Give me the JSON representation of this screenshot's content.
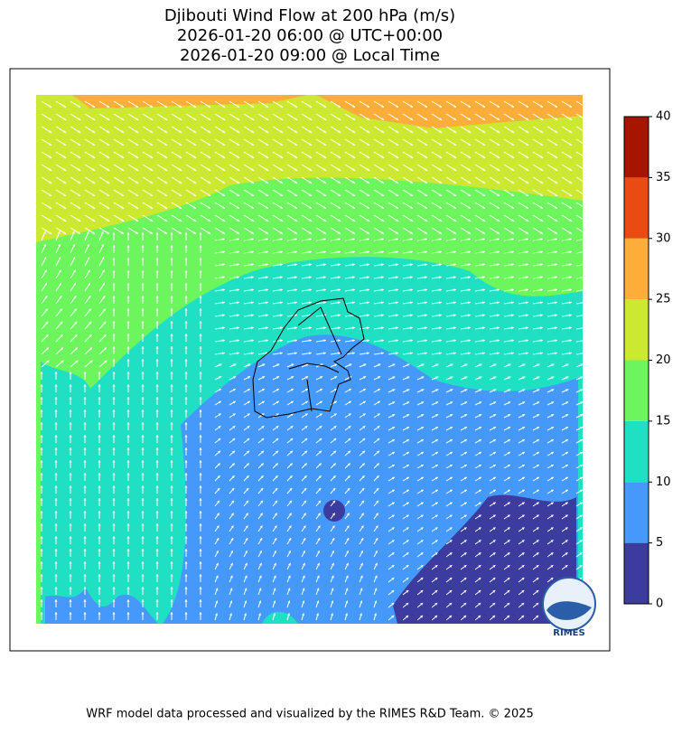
{
  "title": [
    "Djibouti Wind Flow at 200 hPa (m/s)",
    "2026-01-20 06:00 @ UTC+00:00",
    "2026-01-20 09:00 @ Local Time"
  ],
  "colorbar": {
    "lim": [
      0,
      40
    ],
    "ticks": [
      0,
      5,
      10,
      15,
      20,
      25,
      30,
      35,
      40
    ],
    "colors": [
      "#3c3c9e",
      "#4499fb",
      "#1fe0c2",
      "#6cf55c",
      "#cde830",
      "#fcad3a",
      "#ea4b12",
      "#a51500"
    ]
  },
  "logo": "RIMES",
  "footer": "WRF model data processed and visualized by the RIMES R&D Team. © 2025"
}
